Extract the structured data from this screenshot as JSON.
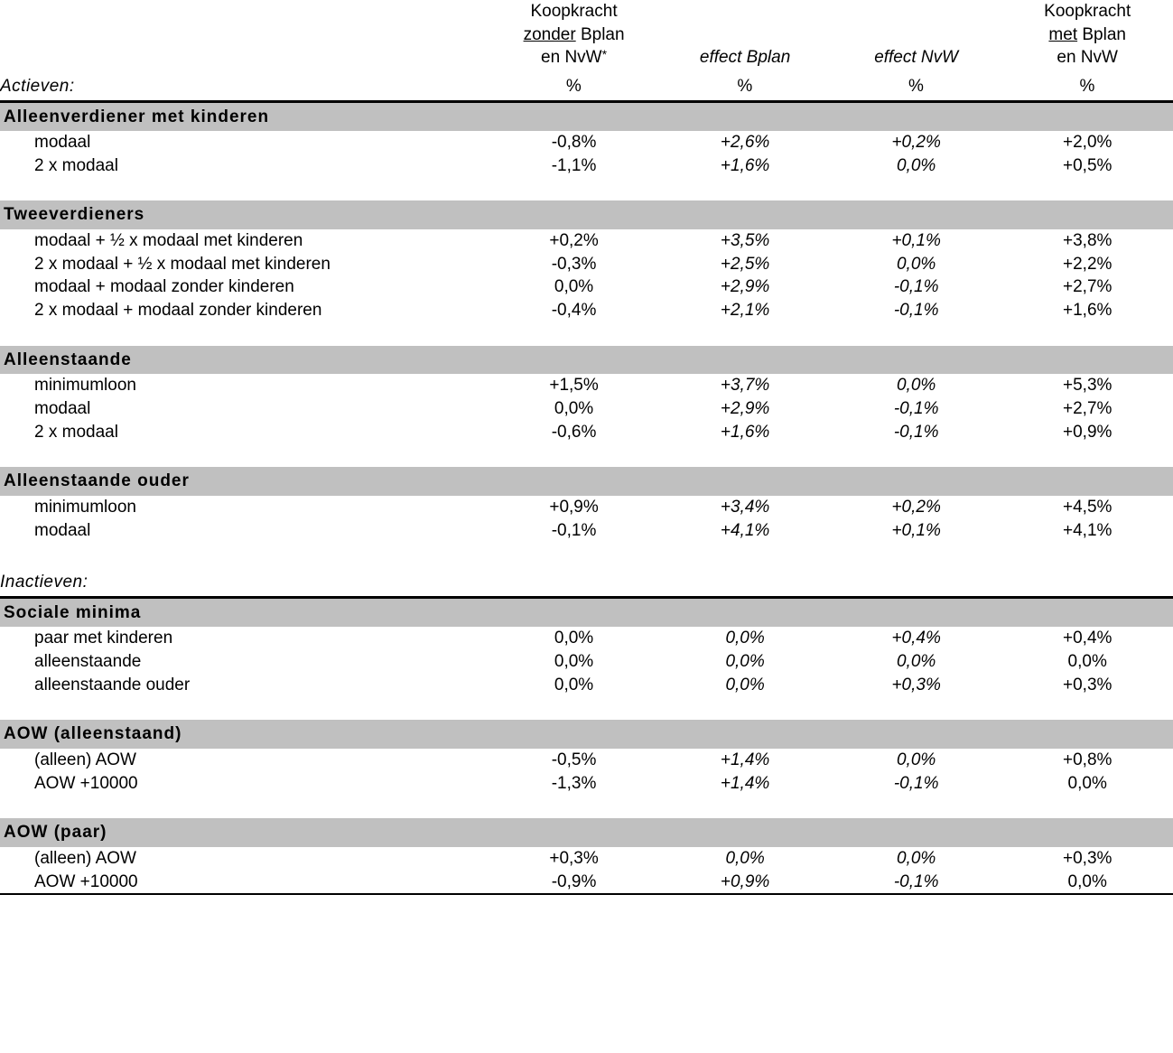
{
  "header": {
    "col1": {
      "line1": "Koopkracht",
      "u": "zonder",
      "after_u": " Bplan",
      "line3a": "en NvW",
      "star": "*",
      "unit": "%"
    },
    "col2": {
      "line1": "effect Bplan",
      "unit": "%"
    },
    "col3": {
      "line1": "effect NvW",
      "unit": "%"
    },
    "col4": {
      "line1": "Koopkracht",
      "u": "met",
      "after_u": " Bplan",
      "line3": "en NvW",
      "unit": "%"
    }
  },
  "section1_label": "Actieven:",
  "section2_label": "Inactieven:",
  "groups": [
    {
      "title": "Alleenverdiener met kinderen",
      "rows": [
        {
          "label": "modaal",
          "c1": "-0,8%",
          "c2": "+2,6%",
          "c3": "+0,2%",
          "c4": "+2,0%"
        },
        {
          "label": "2 x modaal",
          "c1": "-1,1%",
          "c2": "+1,6%",
          "c3": "0,0%",
          "c4": "+0,5%"
        }
      ]
    },
    {
      "title": "Tweeverdieners",
      "rows": [
        {
          "label": "modaal + ½ x modaal met kinderen",
          "c1": "+0,2%",
          "c2": "+3,5%",
          "c3": "+0,1%",
          "c4": "+3,8%"
        },
        {
          "label": "2 x modaal + ½ x modaal met kinderen",
          "c1": "-0,3%",
          "c2": "+2,5%",
          "c3": "0,0%",
          "c4": "+2,2%"
        },
        {
          "label": "modaal + modaal zonder kinderen",
          "c1": "0,0%",
          "c2": "+2,9%",
          "c3": "-0,1%",
          "c4": "+2,7%"
        },
        {
          "label": "2 x modaal + modaal zonder kinderen",
          "c1": "-0,4%",
          "c2": "+2,1%",
          "c3": "-0,1%",
          "c4": "+1,6%"
        }
      ]
    },
    {
      "title": "Alleenstaande",
      "rows": [
        {
          "label": "minimumloon",
          "c1": "+1,5%",
          "c2": "+3,7%",
          "c3": "0,0%",
          "c4": "+5,3%"
        },
        {
          "label": "modaal",
          "c1": "0,0%",
          "c2": "+2,9%",
          "c3": "-0,1%",
          "c4": "+2,7%"
        },
        {
          "label": "2 x modaal",
          "c1": "-0,6%",
          "c2": "+1,6%",
          "c3": "-0,1%",
          "c4": "+0,9%"
        }
      ]
    },
    {
      "title": "Alleenstaande ouder",
      "rows": [
        {
          "label": "minimumloon",
          "c1": "+0,9%",
          "c2": "+3,4%",
          "c3": "+0,2%",
          "c4": "+4,5%"
        },
        {
          "label": "modaal",
          "c1": "-0,1%",
          "c2": "+4,1%",
          "c3": "+0,1%",
          "c4": "+4,1%"
        }
      ]
    },
    {
      "title": "Sociale minima",
      "rows": [
        {
          "label": "paar met kinderen",
          "c1": "0,0%",
          "c2": "0,0%",
          "c3": "+0,4%",
          "c4": "+0,4%"
        },
        {
          "label": "alleenstaande",
          "c1": "0,0%",
          "c2": "0,0%",
          "c3": "0,0%",
          "c4": "0,0%"
        },
        {
          "label": "alleenstaande ouder",
          "c1": "0,0%",
          "c2": "0,0%",
          "c3": "+0,3%",
          "c4": "+0,3%"
        }
      ]
    },
    {
      "title": "AOW (alleenstaand)",
      "rows": [
        {
          "label": "(alleen) AOW",
          "c1": "-0,5%",
          "c2": "+1,4%",
          "c3": "0,0%",
          "c4": "+0,8%"
        },
        {
          "label": "AOW +10000",
          "c1": "-1,3%",
          "c2": "+1,4%",
          "c3": "-0,1%",
          "c4": "0,0%"
        }
      ]
    },
    {
      "title": "AOW (paar)",
      "rows": [
        {
          "label": "(alleen) AOW",
          "c1": "+0,3%",
          "c2": "0,0%",
          "c3": "0,0%",
          "c4": "+0,3%"
        },
        {
          "label": "AOW +10000",
          "c1": "-0,9%",
          "c2": "+0,9%",
          "c3": "-0,1%",
          "c4": "0,0%"
        }
      ]
    }
  ]
}
